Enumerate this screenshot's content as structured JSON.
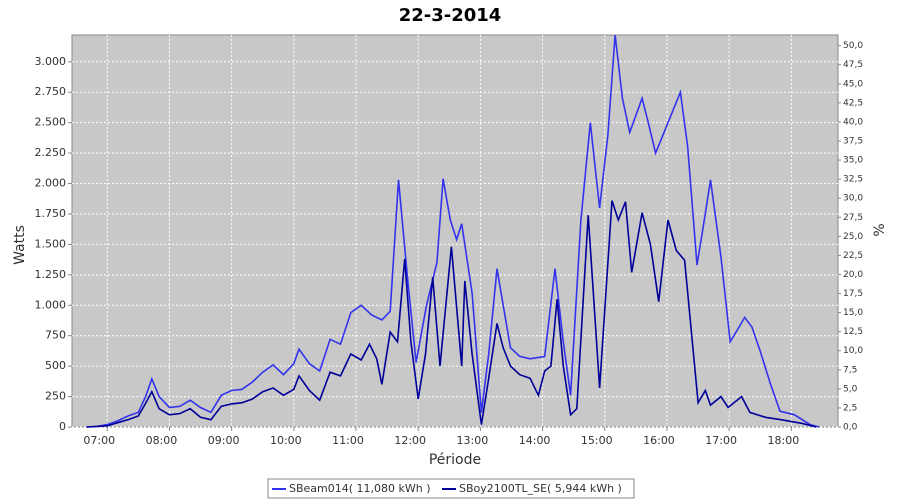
{
  "chart_data": {
    "type": "line",
    "title": "22-3-2014",
    "x_label": "Période",
    "y_label": "Watts",
    "y2_label": "%",
    "xlim": [
      "06:26",
      "18:45"
    ],
    "xticks": [
      "07:00",
      "08:00",
      "09:00",
      "10:00",
      "11:00",
      "12:00",
      "13:00",
      "14:00",
      "15:00",
      "16:00",
      "17:00",
      "18:00"
    ],
    "ylim": [
      0,
      3220
    ],
    "yticks": [
      0,
      250,
      500,
      750,
      {
        "value": 1000,
        "label": "1.000"
      },
      {
        "value": 1250,
        "label": "1.250"
      },
      {
        "value": 1500,
        "label": "1.500"
      },
      {
        "value": 1750,
        "label": "1.750"
      },
      {
        "value": 2000,
        "label": "2.000"
      },
      {
        "value": 2250,
        "label": "2.250"
      },
      {
        "value": 2500,
        "label": "2.500"
      },
      {
        "value": 2750,
        "label": "2.750"
      },
      {
        "value": 3000,
        "label": "3.000"
      }
    ],
    "y2lim": [
      0,
      51.4
    ],
    "y2ticks": [
      {
        "value": 0,
        "label": "0,0"
      },
      {
        "value": 2.5,
        "label": "2,5"
      },
      {
        "value": 5,
        "label": "5,0"
      },
      {
        "value": 7.5,
        "label": "7,5"
      },
      {
        "value": 10,
        "label": "10,0"
      },
      {
        "value": 12.5,
        "label": "12,5"
      },
      {
        "value": 15,
        "label": "15,0"
      },
      {
        "value": 17.5,
        "label": "17,5"
      },
      {
        "value": 20,
        "label": "20,0"
      },
      {
        "value": 22.5,
        "label": "22,5"
      },
      {
        "value": 25,
        "label": "25,0"
      },
      {
        "value": 27.5,
        "label": "27,5"
      },
      {
        "value": 30,
        "label": "30,0"
      },
      {
        "value": 32.5,
        "label": "32,5"
      },
      {
        "value": 35,
        "label": "35,0"
      },
      {
        "value": 37.5,
        "label": "37,5"
      },
      {
        "value": 40,
        "label": "40,0"
      },
      {
        "value": 42.5,
        "label": "42,5"
      },
      {
        "value": 45,
        "label": "45,0"
      },
      {
        "value": 47.5,
        "label": "47,5"
      },
      {
        "value": 50,
        "label": "50,0"
      }
    ],
    "grid": true,
    "legend": "bottom",
    "series": [
      {
        "name": "SBeam014( 11,080 kWh )",
        "color": "#3333ee",
        "x": [
          "06:40",
          "06:50",
          "07:00",
          "07:10",
          "07:20",
          "07:30",
          "07:37",
          "07:43",
          "07:50",
          "08:00",
          "08:10",
          "08:20",
          "08:30",
          "08:40",
          "08:50",
          "09:00",
          "09:10",
          "09:20",
          "09:30",
          "09:40",
          "09:50",
          "10:00",
          "10:05",
          "10:15",
          "10:25",
          "10:35",
          "10:45",
          "10:55",
          "11:05",
          "11:15",
          "11:25",
          "11:33",
          "11:41",
          "11:50",
          "11:58",
          "12:08",
          "12:18",
          "12:24",
          "12:31",
          "12:37",
          "12:42",
          "12:52",
          "13:01",
          "13:08",
          "13:16",
          "13:22",
          "13:29",
          "13:38",
          "13:48",
          "14:02",
          "14:12",
          "14:20",
          "14:27",
          "14:37",
          "14:46",
          "14:55",
          "15:03",
          "15:10",
          "15:17",
          "15:24",
          "15:36",
          "15:42",
          "15:49",
          "16:00",
          "16:13",
          "16:20",
          "16:29",
          "16:36",
          "16:42",
          "16:52",
          "17:01",
          "17:08",
          "17:15",
          "17:22",
          "17:30",
          "17:40",
          "17:49",
          "18:03",
          "18:18",
          "18:27"
        ],
        "values": [
          0,
          5,
          20,
          50,
          90,
          120,
          250,
          395,
          250,
          160,
          170,
          220,
          160,
          120,
          260,
          300,
          310,
          370,
          450,
          510,
          430,
          520,
          640,
          520,
          460,
          720,
          680,
          940,
          1000,
          920,
          880,
          950,
          2030,
          1200,
          530,
          1000,
          1350,
          2040,
          1700,
          1540,
          1670,
          1100,
          120,
          600,
          1300,
          1000,
          650,
          580,
          560,
          580,
          1300,
          700,
          260,
          1700,
          2500,
          1800,
          2400,
          3220,
          2700,
          2420,
          2700,
          2500,
          2250,
          2480,
          2750,
          2300,
          1330,
          1700,
          2030,
          1400,
          700,
          800,
          900,
          820,
          620,
          350,
          130,
          100,
          20,
          0
        ]
      },
      {
        "name": "SBoy2100TL_SE( 5,944 kWh )",
        "color": "#000099",
        "x": [
          "06:40",
          "07:00",
          "07:20",
          "07:30",
          "07:36",
          "07:43",
          "07:50",
          "08:00",
          "08:10",
          "08:20",
          "08:30",
          "08:40",
          "08:50",
          "09:00",
          "09:10",
          "09:20",
          "09:30",
          "09:40",
          "09:50",
          "10:00",
          "10:05",
          "10:15",
          "10:25",
          "10:35",
          "10:45",
          "10:55",
          "11:05",
          "11:13",
          "11:20",
          "11:25",
          "11:33",
          "11:40",
          "11:47",
          "11:53",
          "12:00",
          "12:07",
          "12:14",
          "12:21",
          "12:32",
          "12:42",
          "12:45",
          "12:52",
          "13:01",
          "13:08",
          "13:16",
          "13:22",
          "13:29",
          "13:38",
          "13:48",
          "13:56",
          "14:02",
          "14:08",
          "14:14",
          "14:20",
          "14:27",
          "14:33",
          "14:44",
          "14:55",
          "15:07",
          "15:13",
          "15:20",
          "15:26",
          "15:36",
          "15:44",
          "15:52",
          "16:01",
          "16:09",
          "16:17",
          "16:30",
          "16:37",
          "16:42",
          "16:52",
          "16:59",
          "17:12",
          "17:20",
          "17:35",
          "17:50",
          "18:10",
          "18:24"
        ],
        "values": [
          0,
          10,
          60,
          90,
          180,
          290,
          150,
          100,
          110,
          150,
          80,
          60,
          170,
          190,
          200,
          230,
          290,
          320,
          260,
          310,
          420,
          300,
          220,
          450,
          420,
          600,
          550,
          680,
          560,
          350,
          780,
          700,
          1380,
          700,
          230,
          600,
          1230,
          500,
          1480,
          500,
          1200,
          600,
          20,
          400,
          850,
          650,
          500,
          430,
          400,
          260,
          460,
          500,
          1050,
          500,
          100,
          150,
          1740,
          320,
          1860,
          1700,
          1850,
          1270,
          1760,
          1500,
          1030,
          1700,
          1450,
          1370,
          200,
          300,
          180,
          250,
          160,
          250,
          120,
          80,
          60,
          30,
          0
        ]
      }
    ]
  }
}
